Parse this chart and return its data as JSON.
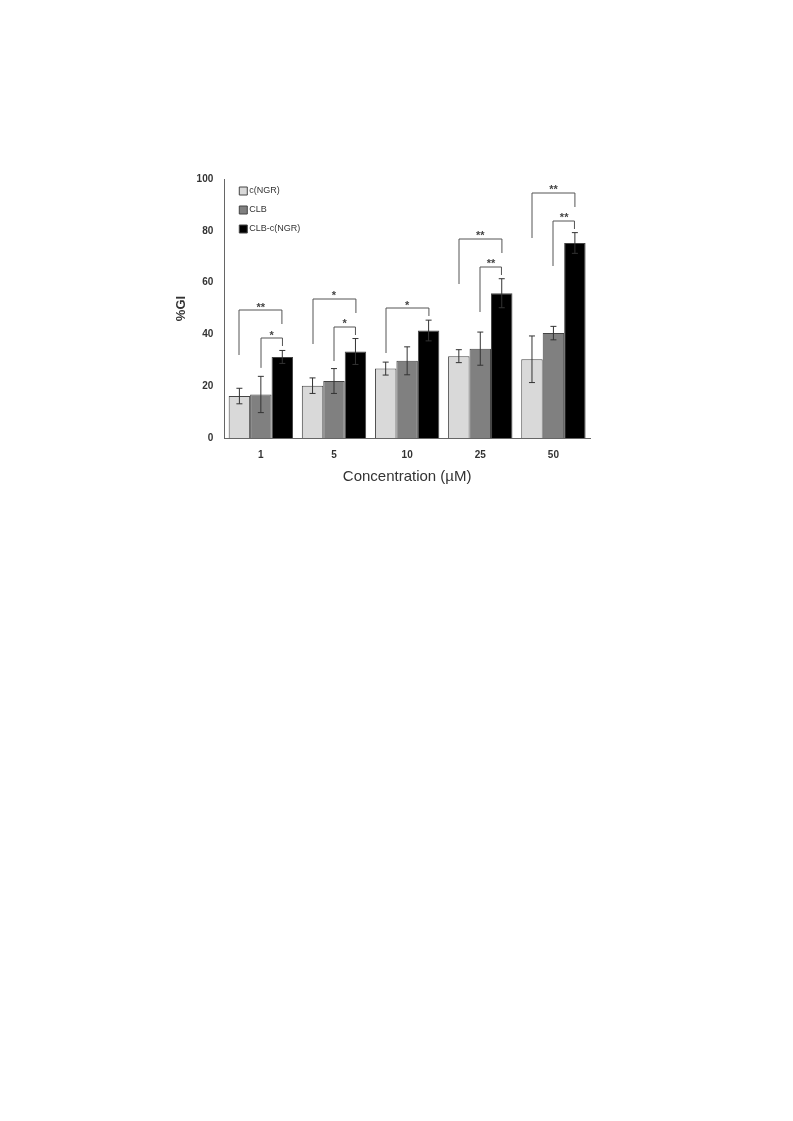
{
  "chart_data": {
    "type": "bar",
    "xlabel": "Concentration (µM)",
    "ylabel": "%GI",
    "categories": [
      "1",
      "5",
      "10",
      "25",
      "50"
    ],
    "series": [
      {
        "name": "c(NGR)",
        "color": "#d9d9d9",
        "values": [
          16.2,
          20.2,
          26.8,
          31.6,
          30.4
        ],
        "errors": [
          3,
          3,
          2.5,
          2.5,
          9
        ]
      },
      {
        "name": "CLB",
        "color": "#808080",
        "values": [
          16.8,
          22,
          29.8,
          34.5,
          40.5
        ],
        "errors": [
          7,
          4.8,
          5.4,
          6.4,
          2.6
        ]
      },
      {
        "name": "CLB-c(NGR)",
        "color": "#000000",
        "values": [
          31.3,
          33.4,
          41.5,
          55.9,
          75.3
        ],
        "errors": [
          2.5,
          5,
          4,
          5.6,
          4
        ]
      }
    ],
    "ylim": [
      0,
      100
    ],
    "yticks": [
      0,
      20,
      40,
      60,
      80,
      100
    ],
    "grid": false,
    "legend": "top left",
    "annotations": [
      "**",
      "*",
      "*",
      "*",
      "*",
      "**",
      "**",
      "**",
      "**"
    ]
  }
}
